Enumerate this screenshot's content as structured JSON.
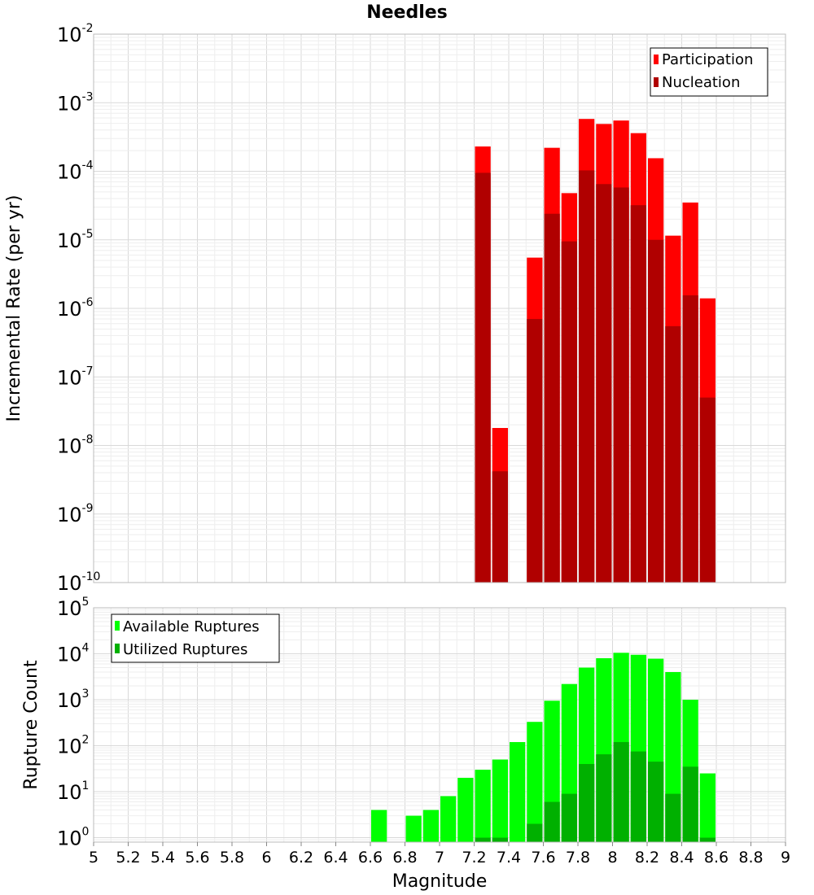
{
  "chart_data": [
    {
      "type": "bar",
      "title": "Needles",
      "xlabel": "",
      "ylabel": "Incremental Rate (per yr)",
      "yscale": "log",
      "ylim": [
        1e-10,
        0.01
      ],
      "xlim": [
        5,
        9
      ],
      "bin_width": 0.1,
      "legend": {
        "position": "top-right",
        "entries": [
          {
            "label": "Participation",
            "color": "#ff0000"
          },
          {
            "label": "Nucleation",
            "color": "#b00000"
          }
        ]
      },
      "x": [
        7.25,
        7.35,
        7.55,
        7.65,
        7.75,
        7.85,
        7.95,
        8.05,
        8.15,
        8.25,
        8.35,
        8.45,
        8.55
      ],
      "series": [
        {
          "name": "Participation",
          "color": "#ff0000",
          "values": [
            0.00023,
            1.8e-08,
            5.5e-06,
            0.00022,
            4.8e-05,
            0.00058,
            0.00049,
            0.00055,
            0.00036,
            0.000155,
            1.15e-05,
            3.5e-05,
            1.4e-06
          ]
        },
        {
          "name": "Nucleation",
          "color": "#b00000",
          "values": [
            9.5e-05,
            4.2e-09,
            7e-07,
            2.4e-05,
            9.5e-06,
            0.000103,
            6.5e-05,
            5.8e-05,
            3.2e-05,
            1e-05,
            5.5e-07,
            1.55e-06,
            5e-08
          ]
        }
      ]
    },
    {
      "type": "bar",
      "title": "",
      "xlabel": "Magnitude",
      "ylabel": "Rupture Count",
      "yscale": "log",
      "ylim": [
        0.8,
        100000.0
      ],
      "xlim": [
        5,
        9
      ],
      "bin_width": 0.1,
      "legend": {
        "position": "top-left",
        "entries": [
          {
            "label": "Available Ruptures",
            "color": "#00ff00"
          },
          {
            "label": "Utilized Ruptures",
            "color": "#00b000"
          }
        ]
      },
      "x": [
        6.65,
        6.85,
        6.95,
        7.05,
        7.15,
        7.25,
        7.35,
        7.45,
        7.55,
        7.65,
        7.75,
        7.85,
        7.95,
        8.05,
        8.15,
        8.25,
        8.35,
        8.45,
        8.55
      ],
      "series": [
        {
          "name": "Available Ruptures",
          "color": "#00ff00",
          "values": [
            4,
            3,
            4,
            8,
            20,
            30,
            50,
            120,
            330,
            950,
            2200,
            5000,
            8000,
            10500,
            9500,
            7800,
            4000,
            1000,
            25
          ]
        },
        {
          "name": "Utilized Ruptures",
          "color": "#00b000",
          "values": [
            0,
            0,
            0,
            0,
            0,
            1,
            1,
            0,
            2,
            6,
            9,
            40,
            65,
            120,
            75,
            45,
            9,
            35,
            1
          ]
        }
      ]
    }
  ],
  "x_axis": {
    "label": "Magnitude",
    "ticks": [
      "5",
      "5.2",
      "5.4",
      "5.6",
      "5.8",
      "6",
      "6.2",
      "6.4",
      "6.6",
      "6.8",
      "7",
      "7.2",
      "7.4",
      "7.6",
      "7.8",
      "8",
      "8.2",
      "8.4",
      "8.6",
      "8.8",
      "9"
    ]
  },
  "top_y_ticks": [
    {
      "base": "10",
      "exp": "-2"
    },
    {
      "base": "10",
      "exp": "-3"
    },
    {
      "base": "10",
      "exp": "-4"
    },
    {
      "base": "10",
      "exp": "-5"
    },
    {
      "base": "10",
      "exp": "-6"
    },
    {
      "base": "10",
      "exp": "-7"
    },
    {
      "base": "10",
      "exp": "-8"
    },
    {
      "base": "10",
      "exp": "-9"
    },
    {
      "base": "10",
      "exp": "-10"
    }
  ],
  "bottom_y_ticks": [
    {
      "base": "10",
      "exp": "5"
    },
    {
      "base": "10",
      "exp": "4"
    },
    {
      "base": "10",
      "exp": "3"
    },
    {
      "base": "10",
      "exp": "2"
    },
    {
      "base": "10",
      "exp": "1"
    },
    {
      "base": "10",
      "exp": "0"
    }
  ]
}
